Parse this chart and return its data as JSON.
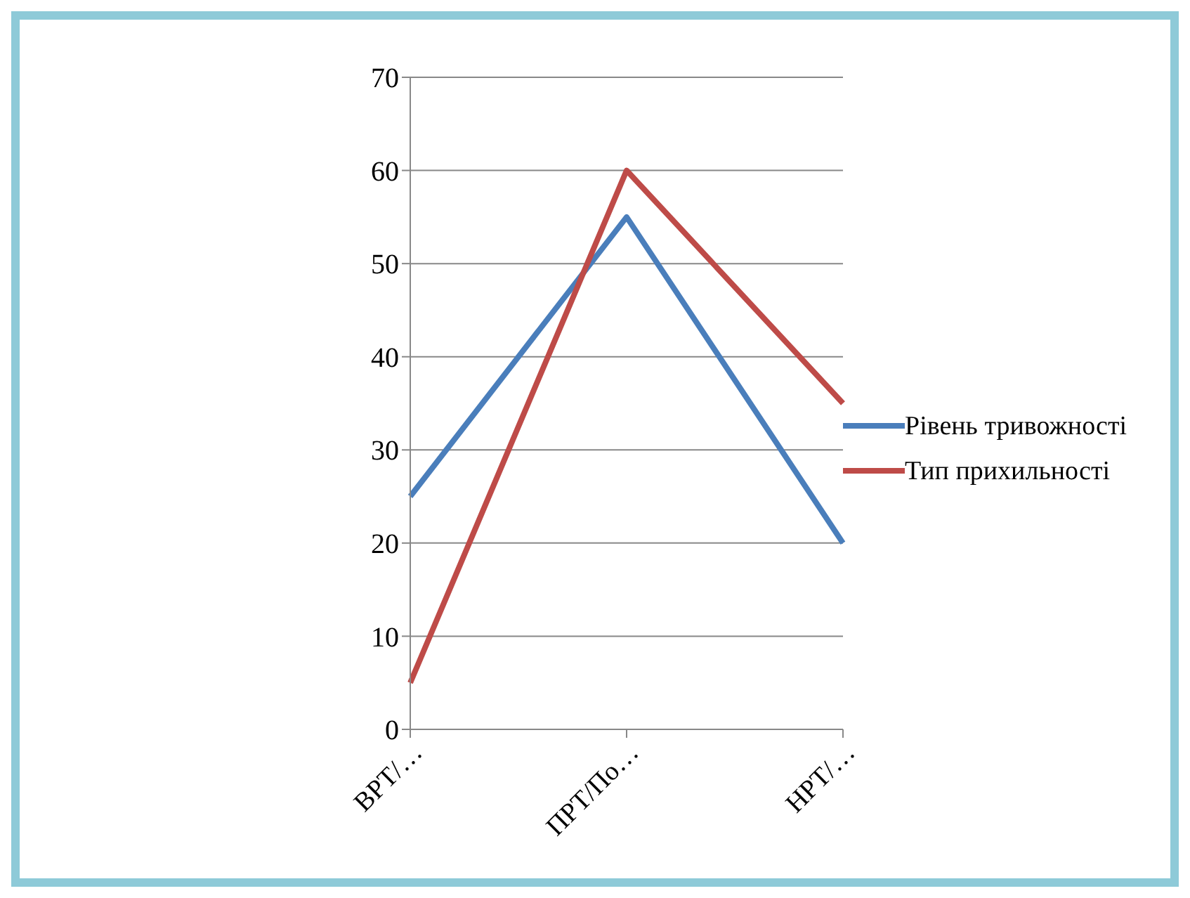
{
  "chart_data": {
    "type": "line",
    "categories": [
      "ВРТ/…",
      "ПРТ/По…",
      "НРТ/…"
    ],
    "series": [
      {
        "name": "Рівень тривожності",
        "color": "#4a7ebb",
        "values": [
          25,
          55,
          20
        ]
      },
      {
        "name": "Тип прихильності",
        "color": "#be4b48",
        "values": [
          5,
          60,
          35
        ]
      }
    ],
    "ylim": [
      0,
      70
    ],
    "yticks": [
      0,
      10,
      20,
      30,
      40,
      50,
      60,
      70
    ],
    "grid": "y",
    "legend": "right",
    "marker": "none",
    "line_style": "solid"
  }
}
